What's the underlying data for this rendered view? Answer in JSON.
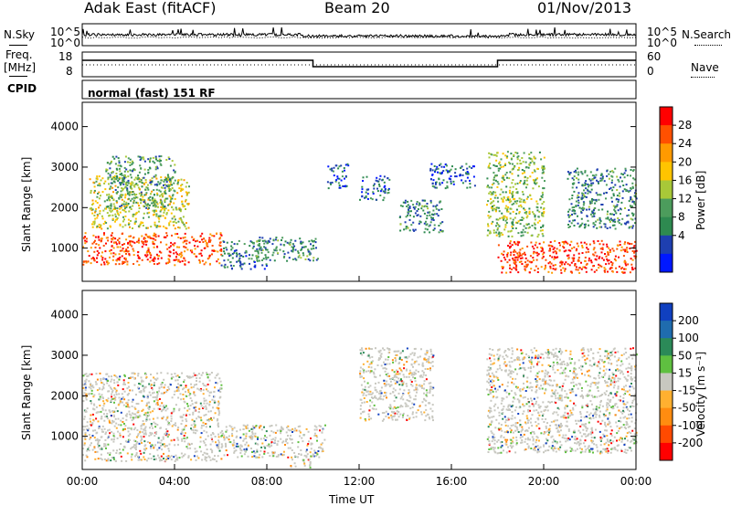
{
  "header": {
    "station": "Adak East (fitACF)",
    "beam": "Beam 20",
    "date": "01/Nov/2013"
  },
  "side_labels": {
    "nsky": "N.Sky",
    "nsearch": "N.Search",
    "freq": "Freq.",
    "freq_unit": "[MHz]",
    "nave": "Nave",
    "cpid": "CPID",
    "cpid_value": "normal (fast) 151 RF"
  },
  "top_axes": {
    "noise_ticks_left": [
      "10^5",
      "10^0"
    ],
    "noise_ticks_right": [
      "10^5",
      "10^0"
    ],
    "freq_ticks": [
      "18",
      "8"
    ],
    "nave_ticks": [
      "60",
      "0"
    ]
  },
  "chart_data": [
    {
      "type": "heatmap",
      "name": "power-panel",
      "ylabel": "Slant Range [km]",
      "xlabel": "",
      "yticks": [
        "4000",
        "3000",
        "2000",
        "1000"
      ],
      "ylim": [
        180,
        4600
      ],
      "colorbar": {
        "label": "Power [dB]",
        "ticks": [
          "28",
          "24",
          "20",
          "16",
          "12",
          "8",
          "4"
        ],
        "colors": [
          "#ff0000",
          "#ff5000",
          "#ff9a00",
          "#ffc400",
          "#a8c838",
          "#4c9c5c",
          "#2e8a50",
          "#1e3fb0",
          "#0018ff"
        ]
      },
      "regions": [
        {
          "t": [
            0.0,
            6.0
          ],
          "r": [
            600,
            1400
          ],
          "level": 0.85
        },
        {
          "t": [
            0.3,
            4.6
          ],
          "r": [
            1500,
            2800
          ],
          "level": 0.55
        },
        {
          "t": [
            1.0,
            4.0
          ],
          "r": [
            2000,
            3300
          ],
          "level": 0.35
        },
        {
          "t": [
            6.0,
            8.0
          ],
          "r": [
            500,
            1200
          ],
          "level": 0.25
        },
        {
          "t": [
            7.5,
            10.2
          ],
          "r": [
            700,
            1300
          ],
          "level": 0.3
        },
        {
          "t": [
            10.6,
            11.5
          ],
          "r": [
            2500,
            3100
          ],
          "level": 0.2
        },
        {
          "t": [
            12.0,
            13.3
          ],
          "r": [
            2200,
            2800
          ],
          "level": 0.2
        },
        {
          "t": [
            13.7,
            15.6
          ],
          "r": [
            1400,
            2200
          ],
          "level": 0.3
        },
        {
          "t": [
            15.0,
            17.0
          ],
          "r": [
            2500,
            3100
          ],
          "level": 0.2
        },
        {
          "t": [
            17.5,
            20.0
          ],
          "r": [
            1300,
            3400
          ],
          "level": 0.45
        },
        {
          "t": [
            18.0,
            24.0
          ],
          "r": [
            400,
            1200
          ],
          "level": 0.9
        },
        {
          "t": [
            21.0,
            24.0
          ],
          "r": [
            1500,
            3000
          ],
          "level": 0.3
        }
      ]
    },
    {
      "type": "heatmap",
      "name": "velocity-panel",
      "ylabel": "Slant Range [km]",
      "xlabel": "Time UT",
      "yticks": [
        "4000",
        "3000",
        "2000",
        "1000"
      ],
      "ylim": [
        180,
        4600
      ],
      "xticks": [
        "00:00",
        "04:00",
        "08:00",
        "12:00",
        "16:00",
        "20:00",
        "00:00"
      ],
      "colorbar": {
        "label": "Velocity [m s⁻¹]",
        "ticks": [
          "200",
          "100",
          "50",
          "15",
          "-15",
          "-50",
          "-100",
          "-200"
        ],
        "colors": [
          "#1040c0",
          "#1f6cae",
          "#2b8a58",
          "#5fc040",
          "#c8c8c0",
          "#ffb030",
          "#ff8c10",
          "#ff4a00",
          "#ff0000"
        ]
      },
      "regions": [
        {
          "t": [
            0.0,
            6.0
          ],
          "r": [
            400,
            2600
          ],
          "level": 0.5
        },
        {
          "t": [
            6.0,
            10.5
          ],
          "r": [
            500,
            1300
          ],
          "level": 0.45
        },
        {
          "t": [
            9.0,
            10.0
          ],
          "r": [
            250,
            600
          ],
          "level": 0.15
        },
        {
          "t": [
            12.0,
            15.2
          ],
          "r": [
            1400,
            3200
          ],
          "level": 0.5
        },
        {
          "t": [
            17.5,
            24.0
          ],
          "r": [
            600,
            3200
          ],
          "level": 0.5
        }
      ]
    }
  ],
  "colors": {
    "grid_bg": "#ffffff",
    "frame": "#000000"
  }
}
